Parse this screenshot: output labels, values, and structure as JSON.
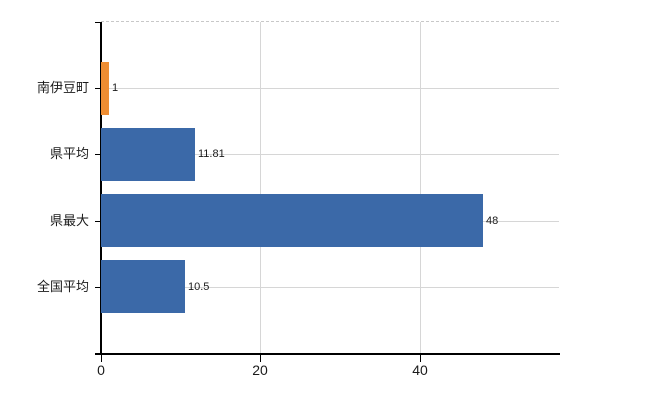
{
  "chart_data": {
    "type": "bar",
    "orientation": "horizontal",
    "title": "",
    "xlabel": "",
    "ylabel": "",
    "categories": [
      "南伊豆町",
      "県平均",
      "県最大",
      "全国平均"
    ],
    "values": [
      1,
      11.81,
      48,
      10.5
    ],
    "value_labels": [
      "1",
      "11.81",
      "48",
      "10.5"
    ],
    "bar_colors": [
      "#ee8d32",
      "#3b69a8",
      "#3b69a8",
      "#3b69a8"
    ],
    "x_ticks": [
      0,
      20,
      40
    ],
    "x_tick_labels": [
      "0",
      "20",
      "40"
    ],
    "xlim": [
      0,
      57.5
    ],
    "grid": true,
    "legend": "none",
    "colors": {
      "bar_blue": "#3b69a8",
      "bar_orange": "#ee8d32",
      "gridline": "#d6d6d6",
      "top_border_dashed": "#c8c8c8",
      "axis": "#000000",
      "text": "#1a1a1a",
      "background": "#ffffff"
    }
  }
}
